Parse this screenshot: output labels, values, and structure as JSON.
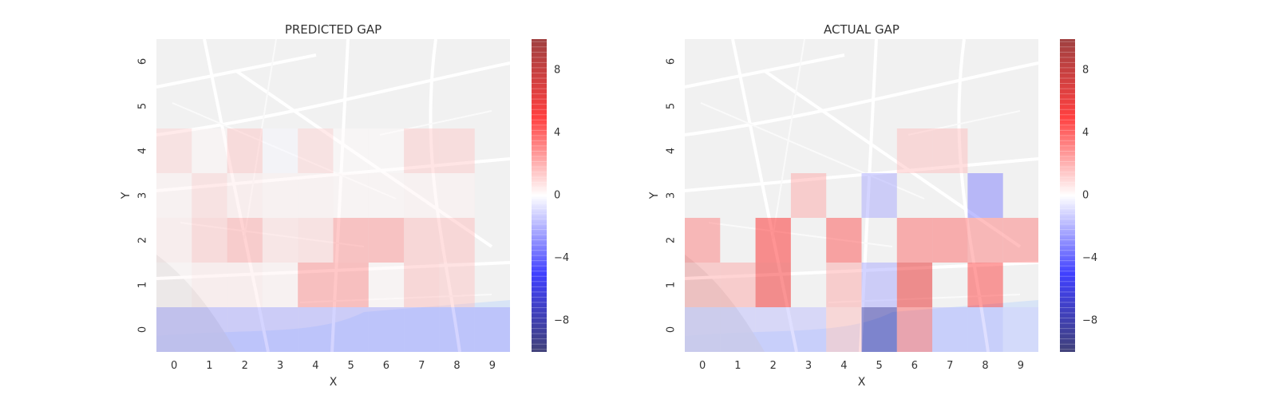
{
  "chart_data": [
    {
      "type": "heatmap",
      "title": "PREDICTED GAP",
      "xlabel": "X",
      "ylabel": "Y",
      "x_ticks": [
        "0",
        "1",
        "2",
        "3",
        "4",
        "5",
        "6",
        "7",
        "8",
        "9"
      ],
      "y_ticks": [
        "0",
        "1",
        "2",
        "3",
        "4",
        "5",
        "6"
      ],
      "grid": false,
      "background": "street map",
      "colorscale": "seismic",
      "vmin": -10,
      "vmax": 10,
      "colorbar_ticks": [
        "8",
        "4",
        "0",
        "−4",
        "−8"
      ],
      "values": [
        [
          -2.0,
          -2.0,
          -2.0,
          -2.0,
          -2.0,
          -2.0,
          -2.0,
          -2.0,
          -2.0,
          -2.0
        ],
        [
          0.2,
          0.5,
          0.5,
          0.3,
          2.6,
          2.6,
          0.2,
          1.5,
          1.3,
          0
        ],
        [
          0.5,
          1.3,
          2.0,
          0.8,
          1.0,
          2.5,
          2.5,
          1.5,
          1.5,
          0
        ],
        [
          0.3,
          1.0,
          0.5,
          0.3,
          0.3,
          0.2,
          0.2,
          0.3,
          0.3,
          0
        ],
        [
          1.0,
          0.2,
          1.3,
          -0.2,
          1.0,
          0.1,
          0.1,
          1.2,
          1.2,
          0
        ],
        [
          0,
          0,
          0,
          0,
          0,
          0,
          0,
          0,
          0,
          0
        ],
        [
          0,
          0,
          0,
          0,
          0,
          0,
          0,
          0,
          0,
          0
        ]
      ]
    },
    {
      "type": "heatmap",
      "title": "ACTUAL GAP",
      "xlabel": "X",
      "ylabel": "Y",
      "x_ticks": [
        "0",
        "1",
        "2",
        "3",
        "4",
        "5",
        "6",
        "7",
        "8",
        "9"
      ],
      "y_ticks": [
        "0",
        "1",
        "2",
        "3",
        "4",
        "5",
        "6"
      ],
      "grid": false,
      "background": "street map",
      "colorscale": "seismic",
      "vmin": -10,
      "vmax": 10,
      "colorbar_ticks": [
        "8",
        "4",
        "0",
        "−4",
        "−8"
      ],
      "values": [
        [
          -1.5,
          -1.5,
          -1.5,
          -1.5,
          1.5,
          -8.0,
          3.5,
          -1.5,
          -1.5,
          -1.0
        ],
        [
          2.0,
          2.0,
          5.5,
          0,
          2.0,
          -2.0,
          6.0,
          0,
          4.5,
          0
        ],
        [
          3.0,
          0,
          5.0,
          0,
          4.0,
          0,
          3.5,
          3.5,
          3.0,
          3.0
        ],
        [
          0,
          0,
          0,
          2.0,
          0,
          -2.0,
          0,
          0,
          -3.0,
          0
        ],
        [
          0,
          0,
          0,
          0,
          0,
          0,
          1.5,
          1.5,
          0,
          0
        ],
        [
          0,
          0,
          0,
          0,
          0,
          0,
          0,
          0,
          0,
          0
        ],
        [
          0,
          0,
          0,
          0,
          0,
          0,
          0,
          0,
          0,
          0
        ]
      ]
    }
  ]
}
